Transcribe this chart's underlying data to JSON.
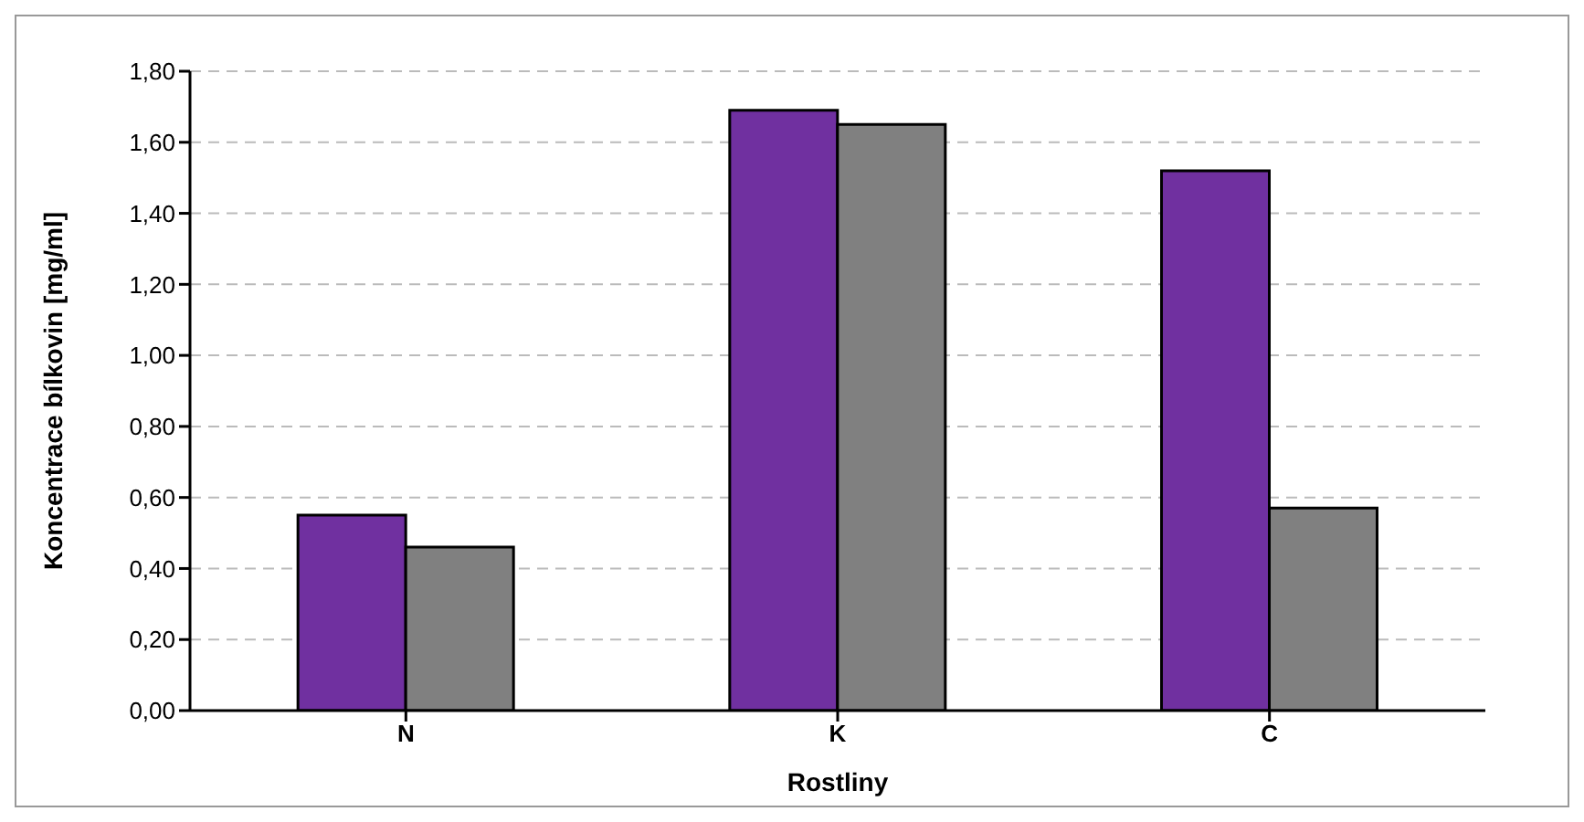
{
  "chart_data": {
    "type": "bar",
    "xlabel": "Rostliny",
    "ylabel": "Koncentrace bílkovin [mg/ml]",
    "categories": [
      "N",
      "K",
      "C"
    ],
    "series": [
      {
        "color": "#7030a0",
        "values": [
          0.55,
          1.69,
          1.52
        ]
      },
      {
        "color": "#808080",
        "values": [
          0.46,
          1.65,
          0.57
        ]
      }
    ],
    "ylim": [
      0,
      1.8
    ],
    "yticks": [
      {
        "value": 0,
        "label": "0,00"
      },
      {
        "value": 0.2,
        "label": "0,20"
      },
      {
        "value": 0.4,
        "label": "0,40"
      },
      {
        "value": 0.6,
        "label": "0,60"
      },
      {
        "value": 0.8,
        "label": "0,80"
      },
      {
        "value": 1.0,
        "label": "1,00"
      },
      {
        "value": 1.2,
        "label": "1,20"
      },
      {
        "value": 1.4,
        "label": "1,40"
      },
      {
        "value": 1.6,
        "label": "1,60"
      },
      {
        "value": 1.8,
        "label": "1,80"
      }
    ],
    "grid": "y",
    "legend": false
  }
}
